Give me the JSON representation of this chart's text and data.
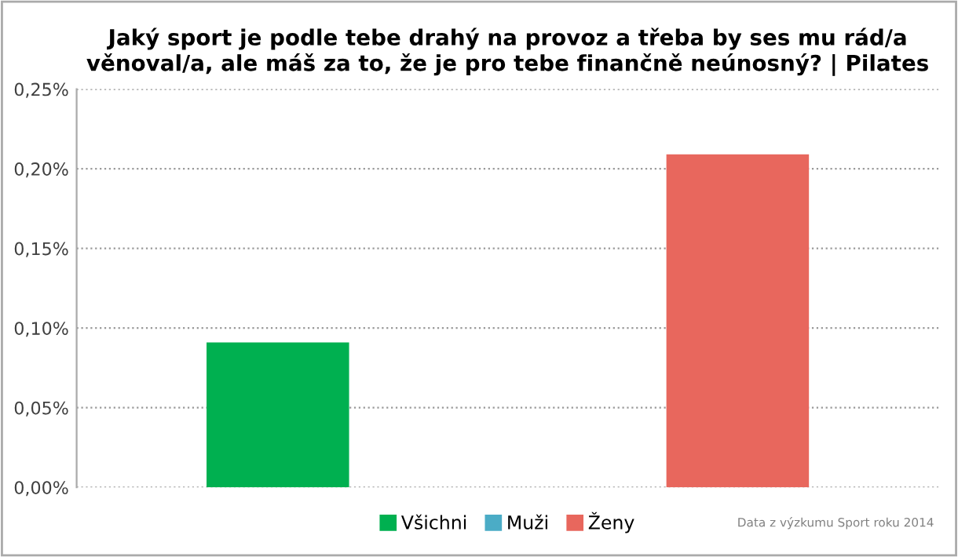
{
  "chart_data": {
    "type": "bar",
    "title": "Jaký sport je podle tebe drahý na provoz a třeba by ses mu rád/a věnoval/a, ale máš za to, že je pro tebe finančně neúnosný? | Pilates",
    "categories": [
      null
    ],
    "series": [
      {
        "name": "Všichni",
        "color": "#00b050",
        "values": [
          0.091
        ]
      },
      {
        "name": "Muži",
        "color": "#4bacc6",
        "values": [
          0
        ]
      },
      {
        "name": "Ženy",
        "color": "#e8675d",
        "values": [
          0.209
        ]
      }
    ],
    "ylim": [
      0,
      0.25
    ],
    "yticks": [
      {
        "value": 0,
        "label": "0,00%"
      },
      {
        "value": 0.05,
        "label": "0,05%"
      },
      {
        "value": 0.1,
        "label": "0,10%"
      },
      {
        "value": 0.15,
        "label": "0,15%"
      },
      {
        "value": 0.2,
        "label": "0,20%"
      },
      {
        "value": 0.25,
        "label": "0,25%"
      }
    ],
    "grid": "y",
    "legend": "bottom",
    "annotations": [
      "Data z výzkumu Sport roku 2014"
    ]
  }
}
